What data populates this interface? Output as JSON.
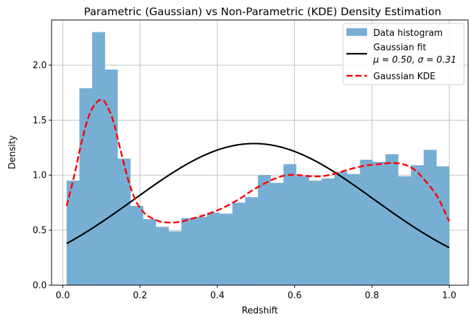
{
  "chart_data": {
    "type": "bar",
    "title": "Parametric (Gaussian) vs Non-Parametric (KDE) Density Estimation",
    "xlabel": "Redshift",
    "ylabel": "Density",
    "xlim": [
      -0.029,
      1.049
    ],
    "ylim": [
      0,
      2.41
    ],
    "xticks": [
      0.0,
      0.2,
      0.4,
      0.6,
      0.8,
      1.0
    ],
    "xtick_labels": [
      "0.0",
      "0.2",
      "0.4",
      "0.6",
      "0.8",
      "1.0"
    ],
    "yticks": [
      0.0,
      0.5,
      1.0,
      1.5,
      2.0
    ],
    "ytick_labels": [
      "0.0",
      "0.5",
      "1.0",
      "1.5",
      "2.0"
    ],
    "grid": true,
    "legend_position": "top-right",
    "histogram": {
      "name": "Data histogram",
      "color": "#77aed4",
      "bin_edges": [
        0.01,
        0.043,
        0.076,
        0.109,
        0.142,
        0.175,
        0.208,
        0.241,
        0.274,
        0.307,
        0.34,
        0.373,
        0.406,
        0.439,
        0.472,
        0.505,
        0.538,
        0.571,
        0.604,
        0.637,
        0.67,
        0.703,
        0.736,
        0.769,
        0.802,
        0.835,
        0.868,
        0.901,
        0.934,
        0.967,
        1.0
      ],
      "values": [
        0.95,
        1.79,
        2.3,
        1.96,
        1.15,
        0.72,
        0.6,
        0.53,
        0.49,
        0.61,
        0.62,
        0.66,
        0.65,
        0.75,
        0.8,
        1.0,
        0.93,
        1.1,
        0.99,
        0.95,
        0.97,
        1.03,
        1.01,
        1.14,
        1.12,
        1.19,
        0.99,
        1.09,
        1.23,
        1.08
      ]
    },
    "gaussian_fit": {
      "name": "Gaussian fit",
      "label_line2": "μ = 0.50,  σ = 0.31",
      "mu": 0.495,
      "sigma": 0.31,
      "x_range": [
        0.01,
        1.0
      ],
      "color": "#000000"
    },
    "kde": {
      "name": "Gaussian KDE",
      "color": "#ff0000",
      "x": [
        0.01,
        0.03,
        0.05,
        0.07,
        0.09,
        0.1,
        0.11,
        0.13,
        0.15,
        0.17,
        0.19,
        0.21,
        0.23,
        0.25,
        0.27,
        0.29,
        0.31,
        0.33,
        0.35,
        0.37,
        0.4,
        0.43,
        0.46,
        0.49,
        0.52,
        0.55,
        0.58,
        0.61,
        0.64,
        0.67,
        0.7,
        0.73,
        0.76,
        0.79,
        0.82,
        0.85,
        0.88,
        0.91,
        0.94,
        0.97,
        1.0
      ],
      "y": [
        0.72,
        1.0,
        1.32,
        1.56,
        1.67,
        1.68,
        1.66,
        1.5,
        1.22,
        0.95,
        0.76,
        0.66,
        0.61,
        0.58,
        0.57,
        0.57,
        0.58,
        0.6,
        0.62,
        0.64,
        0.68,
        0.73,
        0.79,
        0.86,
        0.92,
        0.97,
        1.0,
        1.0,
        0.99,
        0.99,
        1.01,
        1.04,
        1.07,
        1.09,
        1.1,
        1.11,
        1.1,
        1.05,
        0.94,
        0.8,
        0.58
      ]
    }
  }
}
